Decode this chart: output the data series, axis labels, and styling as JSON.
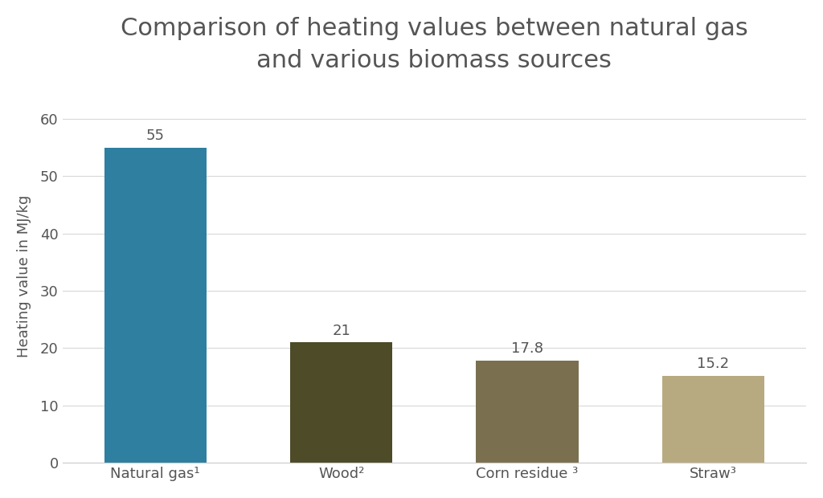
{
  "categories": [
    "Natural gas¹",
    "Wood²",
    "Corn residue ³",
    "Straw³"
  ],
  "values": [
    55,
    21,
    17.8,
    15.2
  ],
  "bar_colors": [
    "#2e7fa0",
    "#4d4b28",
    "#7a7050",
    "#b8aa80"
  ],
  "title": "Comparison of heating values between natural gas\nand various biomass sources",
  "ylabel": "Heating value in MJ/kg",
  "ylim": [
    0,
    65
  ],
  "yticks": [
    0,
    10,
    20,
    30,
    40,
    50,
    60
  ],
  "title_fontsize": 22,
  "label_fontsize": 13,
  "tick_fontsize": 13,
  "annotation_fontsize": 13,
  "background_color": "#ffffff",
  "plot_bg_color": "#ffffff",
  "bar_width": 0.55,
  "grid_color": "#d8d8d8",
  "text_color": "#555555"
}
